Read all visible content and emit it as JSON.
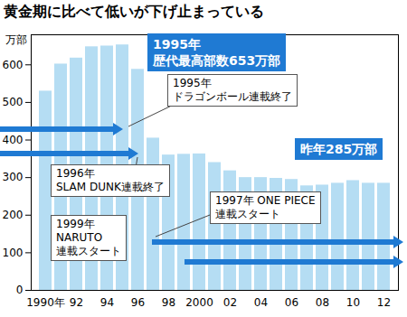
{
  "chart_data": {
    "type": "bar",
    "title": "黄金期に比べて低いが下げ止まっている",
    "y_label": "万部",
    "categories": [
      "1990年",
      null,
      "92",
      null,
      "94",
      null,
      "96",
      null,
      "98",
      null,
      "2000",
      null,
      "02",
      null,
      "04",
      null,
      "06",
      null,
      "08",
      null,
      "10",
      null,
      "12"
    ],
    "values": [
      530,
      602,
      618,
      648,
      650,
      653,
      588,
      405,
      360,
      362,
      363,
      340,
      318,
      300,
      300,
      298,
      295,
      278,
      280,
      285,
      292,
      285,
      285
    ],
    "color": "#b5ddf3",
    "ylim": [
      0,
      680
    ],
    "yticks": [
      0,
      100,
      200,
      300,
      400,
      500,
      600
    ],
    "grid": false,
    "annotations": [
      "1995年\n歴代最高部数653万部",
      "1995年\nドラゴンボール連載終了",
      "1996年\nSLAM DUNK連載終了",
      "1997年 ONE PIECE\n連載スタート",
      "1999年\nNARUTO\n連載スタート",
      "昨年285万部"
    ]
  }
}
